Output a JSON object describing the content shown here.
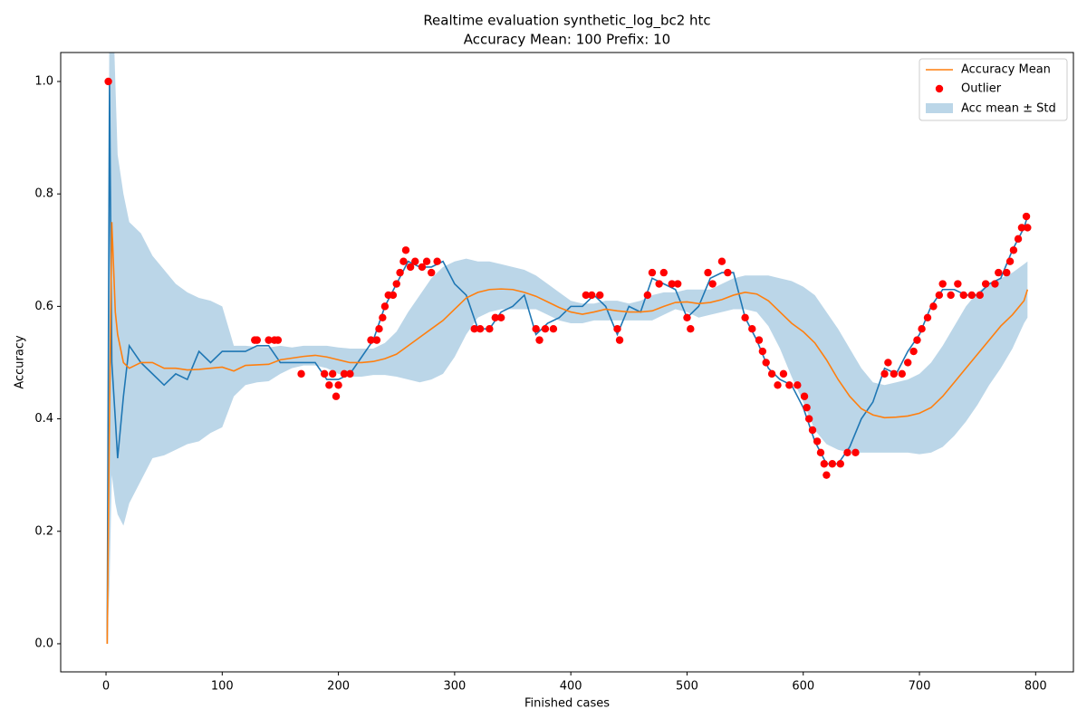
{
  "chart_data": {
    "type": "line",
    "title": "Realtime evaluation synthetic_log_bc2 htc",
    "subtitle": "Accuracy Mean: 100 Prefix: 10",
    "x_label": "Finished cases",
    "y_label": "Accuracy",
    "x": [
      1,
      3,
      5,
      8,
      10,
      15,
      20,
      30,
      40,
      50,
      60,
      70,
      80,
      90,
      100,
      110,
      120,
      130,
      140,
      150,
      160,
      170,
      180,
      190,
      200,
      210,
      220,
      230,
      240,
      250,
      260,
      270,
      280,
      290,
      300,
      310,
      320,
      330,
      340,
      350,
      360,
      370,
      380,
      390,
      400,
      410,
      420,
      430,
      440,
      450,
      460,
      470,
      480,
      490,
      500,
      510,
      520,
      530,
      540,
      550,
      560,
      570,
      580,
      590,
      600,
      610,
      620,
      630,
      640,
      650,
      660,
      670,
      680,
      690,
      700,
      710,
      720,
      730,
      740,
      750,
      760,
      770,
      780,
      790,
      793
    ],
    "series": [
      {
        "color": "#1f77b4",
        "values": [
          0,
          1.0,
          0.5,
          0.4,
          0.33,
          0.44,
          0.53,
          0.5,
          0.48,
          0.46,
          0.48,
          0.47,
          0.52,
          0.5,
          0.52,
          0.52,
          0.52,
          0.53,
          0.53,
          0.5,
          0.5,
          0.5,
          0.5,
          0.47,
          0.47,
          0.48,
          0.51,
          0.54,
          0.6,
          0.64,
          0.68,
          0.67,
          0.67,
          0.68,
          0.64,
          0.62,
          0.56,
          0.56,
          0.59,
          0.6,
          0.62,
          0.55,
          0.57,
          0.58,
          0.6,
          0.6,
          0.62,
          0.6,
          0.55,
          0.6,
          0.59,
          0.65,
          0.64,
          0.63,
          0.58,
          0.6,
          0.65,
          0.66,
          0.66,
          0.58,
          0.54,
          0.49,
          0.47,
          0.46,
          0.42,
          0.36,
          0.32,
          0.32,
          0.35,
          0.4,
          0.43,
          0.49,
          0.48,
          0.52,
          0.55,
          0.6,
          0.63,
          0.63,
          0.62,
          0.62,
          0.64,
          0.65,
          0.7,
          0.74,
          0.76
        ]
      },
      {
        "name": "Accuracy Mean",
        "color": "#ff7f0e",
        "values": [
          0,
          0.4,
          0.75,
          0.59,
          0.55,
          0.5,
          0.49,
          0.5,
          0.5,
          0.49,
          0.49,
          0.487,
          0.488,
          0.49,
          0.492,
          0.485,
          0.495,
          0.496,
          0.497,
          0.505,
          0.508,
          0.511,
          0.513,
          0.51,
          0.505,
          0.5,
          0.5,
          0.502,
          0.507,
          0.515,
          0.53,
          0.545,
          0.56,
          0.575,
          0.595,
          0.615,
          0.625,
          0.63,
          0.631,
          0.63,
          0.625,
          0.618,
          0.608,
          0.598,
          0.59,
          0.586,
          0.59,
          0.595,
          0.592,
          0.59,
          0.59,
          0.592,
          0.6,
          0.607,
          0.608,
          0.605,
          0.607,
          0.612,
          0.62,
          0.625,
          0.622,
          0.61,
          0.59,
          0.57,
          0.555,
          0.535,
          0.505,
          0.47,
          0.44,
          0.418,
          0.407,
          0.402,
          0.403,
          0.405,
          0.41,
          0.42,
          0.44,
          0.465,
          0.49,
          0.515,
          0.54,
          0.565,
          0.585,
          0.61,
          0.63
        ]
      }
    ],
    "band": {
      "name": "Acc mean ± Std",
      "color": "#1f77b4",
      "alpha": 0.3,
      "lower": [
        0,
        0.1,
        0.3,
        0.25,
        0.23,
        0.21,
        0.25,
        0.29,
        0.33,
        0.335,
        0.345,
        0.355,
        0.36,
        0.375,
        0.385,
        0.44,
        0.46,
        0.465,
        0.467,
        0.48,
        0.49,
        0.495,
        0.495,
        0.49,
        0.48,
        0.475,
        0.475,
        0.478,
        0.478,
        0.475,
        0.47,
        0.465,
        0.47,
        0.48,
        0.51,
        0.55,
        0.58,
        0.59,
        0.595,
        0.595,
        0.595,
        0.595,
        0.585,
        0.575,
        0.57,
        0.57,
        0.575,
        0.575,
        0.575,
        0.575,
        0.575,
        0.575,
        0.585,
        0.595,
        0.59,
        0.58,
        0.585,
        0.59,
        0.595,
        0.595,
        0.59,
        0.565,
        0.525,
        0.475,
        0.43,
        0.38,
        0.355,
        0.345,
        0.34,
        0.34,
        0.34,
        0.34,
        0.34,
        0.34,
        0.337,
        0.34,
        0.35,
        0.37,
        0.395,
        0.425,
        0.46,
        0.49,
        0.525,
        0.57,
        0.58
      ],
      "upper": [
        0,
        1.2,
        1.2,
        1.0,
        0.87,
        0.8,
        0.75,
        0.73,
        0.69,
        0.665,
        0.64,
        0.625,
        0.615,
        0.61,
        0.6,
        0.53,
        0.53,
        0.528,
        0.527,
        0.53,
        0.527,
        0.53,
        0.53,
        0.53,
        0.527,
        0.525,
        0.525,
        0.525,
        0.535,
        0.555,
        0.59,
        0.62,
        0.65,
        0.67,
        0.68,
        0.685,
        0.68,
        0.68,
        0.675,
        0.67,
        0.665,
        0.655,
        0.64,
        0.625,
        0.61,
        0.605,
        0.605,
        0.61,
        0.61,
        0.605,
        0.61,
        0.62,
        0.625,
        0.625,
        0.63,
        0.63,
        0.63,
        0.64,
        0.65,
        0.655,
        0.655,
        0.655,
        0.65,
        0.645,
        0.635,
        0.62,
        0.59,
        0.56,
        0.525,
        0.49,
        0.465,
        0.46,
        0.465,
        0.47,
        0.48,
        0.5,
        0.53,
        0.565,
        0.6,
        0.625,
        0.64,
        0.65,
        0.66,
        0.675,
        0.68
      ]
    },
    "outliers": {
      "name": "Outlier",
      "color": "#ff0000",
      "x": [
        2,
        128,
        130,
        140,
        145,
        148,
        168,
        188,
        192,
        195,
        198,
        200,
        205,
        210,
        228,
        233,
        235,
        238,
        240,
        243,
        247,
        250,
        253,
        256,
        258,
        262,
        266,
        272,
        276,
        280,
        285,
        317,
        322,
        330,
        335,
        340,
        370,
        373,
        378,
        385,
        413,
        418,
        425,
        440,
        442,
        466,
        470,
        476,
        480,
        487,
        492,
        500,
        503,
        518,
        522,
        530,
        535,
        550,
        556,
        562,
        565,
        568,
        573,
        578,
        583,
        588,
        595,
        601,
        603,
        605,
        608,
        612,
        615,
        618,
        620,
        625,
        632,
        638,
        645,
        670,
        673,
        678,
        685,
        690,
        695,
        698,
        702,
        707,
        712,
        717,
        720,
        727,
        733,
        738,
        745,
        752,
        757,
        765,
        768,
        775,
        778,
        781,
        785,
        788,
        792,
        793
      ],
      "y": [
        1.0,
        0.54,
        0.54,
        0.54,
        0.54,
        0.54,
        0.48,
        0.48,
        0.46,
        0.48,
        0.44,
        0.46,
        0.48,
        0.48,
        0.54,
        0.54,
        0.56,
        0.58,
        0.6,
        0.62,
        0.62,
        0.64,
        0.66,
        0.68,
        0.7,
        0.67,
        0.68,
        0.67,
        0.68,
        0.66,
        0.68,
        0.56,
        0.56,
        0.56,
        0.58,
        0.58,
        0.56,
        0.54,
        0.56,
        0.56,
        0.62,
        0.62,
        0.62,
        0.56,
        0.54,
        0.62,
        0.66,
        0.64,
        0.66,
        0.64,
        0.64,
        0.58,
        0.56,
        0.66,
        0.64,
        0.68,
        0.66,
        0.58,
        0.56,
        0.54,
        0.52,
        0.5,
        0.48,
        0.46,
        0.48,
        0.46,
        0.46,
        0.44,
        0.42,
        0.4,
        0.38,
        0.36,
        0.34,
        0.32,
        0.3,
        0.32,
        0.32,
        0.34,
        0.34,
        0.48,
        0.5,
        0.48,
        0.48,
        0.5,
        0.52,
        0.54,
        0.56,
        0.58,
        0.6,
        0.62,
        0.64,
        0.62,
        0.64,
        0.62,
        0.62,
        0.62,
        0.64,
        0.64,
        0.66,
        0.66,
        0.68,
        0.7,
        0.72,
        0.74,
        0.76,
        0.74
      ]
    },
    "xlim": [
      -39,
      832.5
    ],
    "ylim": [
      -0.05,
      1.0515
    ],
    "xticks": [
      0,
      100,
      200,
      300,
      400,
      500,
      600,
      700,
      800
    ],
    "yticks": [
      {
        "value": 0,
        "label": "0.0"
      },
      {
        "value": 0.2,
        "label": "0.2"
      },
      {
        "value": 0.4,
        "label": "0.4"
      },
      {
        "value": 0.6,
        "label": "0.6"
      },
      {
        "value": 0.8,
        "label": "0.8"
      },
      {
        "value": 1,
        "label": "1.0"
      }
    ],
    "legend": "upper right"
  }
}
